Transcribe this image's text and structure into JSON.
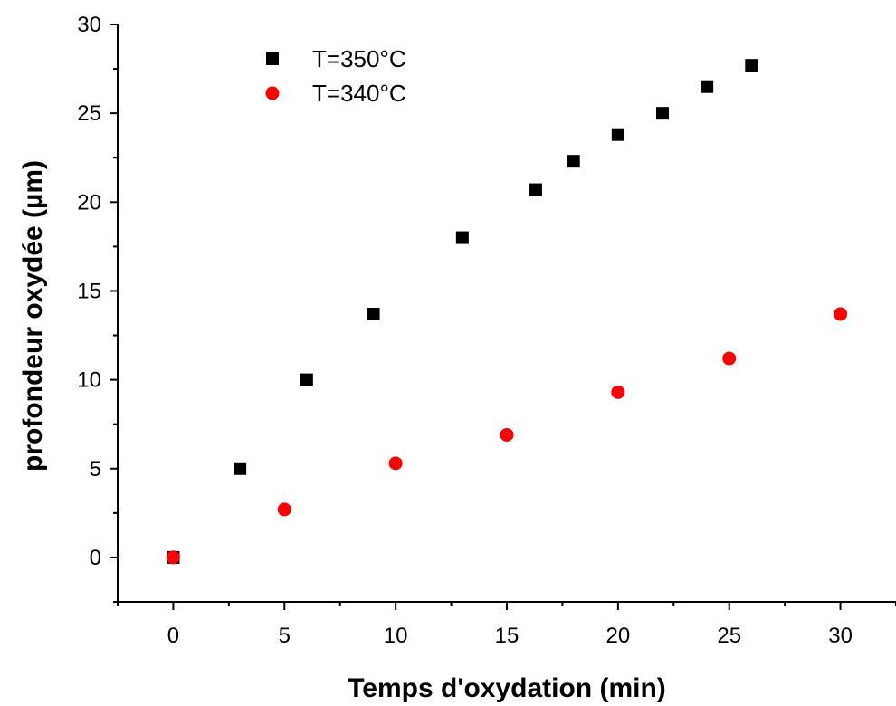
{
  "chart_data": {
    "type": "scatter",
    "xlabel": "Temps d'oxydation (min)",
    "ylabel": "profondeur oxydée (µm)",
    "xlim": [
      -2.5,
      32.5
    ],
    "ylim": [
      -2.5,
      30
    ],
    "xticks": [
      0,
      5,
      10,
      15,
      20,
      25,
      30
    ],
    "yticks": [
      0,
      5,
      10,
      15,
      20,
      25,
      30
    ],
    "grid": false,
    "legend_position": "top-left",
    "series": [
      {
        "name": "T=350°C",
        "marker": "square",
        "color": "#000000",
        "x": [
          0,
          3,
          6,
          9,
          13,
          16.3,
          18,
          20,
          22,
          24,
          26
        ],
        "y": [
          0,
          5,
          10,
          13.7,
          18,
          20.7,
          22.3,
          23.8,
          25,
          26.5,
          27.7
        ]
      },
      {
        "name": "T=340°C",
        "marker": "circle",
        "color": "#ff0000",
        "x": [
          0,
          5,
          10,
          15,
          20,
          25,
          30
        ],
        "y": [
          0,
          2.7,
          5.3,
          6.9,
          9.3,
          11.2,
          13.7
        ]
      }
    ]
  }
}
